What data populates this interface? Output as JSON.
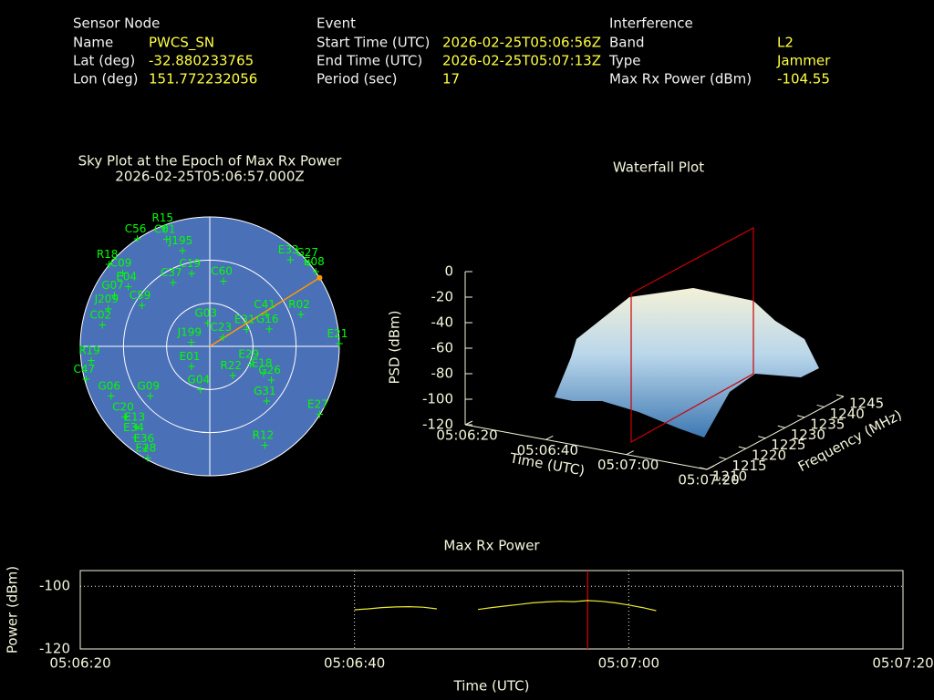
{
  "header": {
    "sensor": {
      "title": "Sensor Node",
      "rows": [
        [
          "Name",
          "PWCS_SN"
        ],
        [
          "Lat (deg)",
          "-32.880233765"
        ],
        [
          "Lon (deg)",
          "151.772232056"
        ]
      ]
    },
    "event": {
      "title": "Event",
      "rows": [
        [
          "Start Time (UTC)",
          "2026-02-25T05:06:56Z"
        ],
        [
          "End Time (UTC)",
          "2026-02-25T05:07:13Z"
        ],
        [
          "Period (sec)",
          "17"
        ]
      ]
    },
    "interference": {
      "title": "Interference",
      "rows": [
        [
          "Band",
          "L2"
        ],
        [
          "Type",
          "Jammer"
        ],
        [
          "Max Rx Power (dBm)",
          "-104.55"
        ]
      ]
    }
  },
  "chart_data": [
    {
      "type": "polar",
      "title": "Sky Plot at the Epoch of Max Rx Power",
      "subtitle": "2026-02-25T05:06:57.000Z",
      "rlim": [
        90,
        0
      ],
      "rticks": [
        90,
        60,
        30,
        0
      ],
      "color": "#00ff00",
      "disk_color": "#4a70b8",
      "jammer_azimuth": 58,
      "jammer_color": "#ff9900",
      "satellites": [
        {
          "name": "R15",
          "azimuth": 339,
          "elevation": 2
        },
        {
          "name": "C01",
          "azimuth": 338,
          "elevation": 10
        },
        {
          "name": "C56",
          "azimuth": 326,
          "elevation": 0
        },
        {
          "name": "J195",
          "azimuth": 344,
          "elevation": 21
        },
        {
          "name": "E33",
          "azimuth": 43,
          "elevation": 8
        },
        {
          "name": "G27",
          "azimuth": 50,
          "elevation": 0
        },
        {
          "name": "E08",
          "azimuth": 55,
          "elevation": 0
        },
        {
          "name": "R18",
          "azimuth": 309,
          "elevation": 0
        },
        {
          "name": "C09",
          "azimuth": 310,
          "elevation": 11
        },
        {
          "name": "C37",
          "azimuth": 330,
          "elevation": 39
        },
        {
          "name": "C60",
          "azimuth": 12,
          "elevation": 44
        },
        {
          "name": "E04",
          "azimuth": 306,
          "elevation": 20
        },
        {
          "name": "C19",
          "azimuth": 346,
          "elevation": 38
        },
        {
          "name": "G07",
          "azimuth": 298,
          "elevation": 15
        },
        {
          "name": "J209",
          "azimuth": 290,
          "elevation": 15
        },
        {
          "name": "C02",
          "azimuth": 281,
          "elevation": 14
        },
        {
          "name": "C59",
          "azimuth": 301,
          "elevation": 35
        },
        {
          "name": "G03",
          "azimuth": 355,
          "elevation": 74
        },
        {
          "name": "C41",
          "azimuth": 61,
          "elevation": 45
        },
        {
          "name": "R02",
          "azimuth": 71,
          "elevation": 23
        },
        {
          "name": "E31",
          "azimuth": 66,
          "elevation": 62
        },
        {
          "name": "G16",
          "azimuth": 74,
          "elevation": 47
        },
        {
          "name": "C23",
          "azimuth": 56,
          "elevation": 79
        },
        {
          "name": "J199",
          "azimuth": 281,
          "elevation": 77
        },
        {
          "name": "E21",
          "azimuth": 89,
          "elevation": 0
        },
        {
          "name": "R19",
          "azimuth": 263,
          "elevation": 7
        },
        {
          "name": "C47",
          "azimuth": 255,
          "elevation": 1
        },
        {
          "name": "G06",
          "azimuth": 243,
          "elevation": 13
        },
        {
          "name": "E29",
          "azimuth": 114,
          "elevation": 59
        },
        {
          "name": "E18",
          "azimuth": 117,
          "elevation": 48
        },
        {
          "name": "G26",
          "azimuth": 119,
          "elevation": 41
        },
        {
          "name": "G31",
          "azimuth": 134,
          "elevation": 35
        },
        {
          "name": "E27",
          "azimuth": 122,
          "elevation": 0
        },
        {
          "name": "G09",
          "azimuth": 230,
          "elevation": 36
        },
        {
          "name": "C20",
          "azimuth": 230,
          "elevation": 13
        },
        {
          "name": "E13",
          "azimuth": 222,
          "elevation": 14
        },
        {
          "name": "E34",
          "azimuth": 219,
          "elevation": 8
        },
        {
          "name": "E36",
          "azimuth": 212,
          "elevation": 6
        },
        {
          "name": "E28",
          "azimuth": 209,
          "elevation": 1
        },
        {
          "name": "R12",
          "azimuth": 151,
          "elevation": 11
        },
        {
          "name": "G04",
          "azimuth": 192,
          "elevation": 59
        },
        {
          "name": "R22",
          "azimuth": 142,
          "elevation": 64
        },
        {
          "name": "E01",
          "azimuth": 222,
          "elevation": 71
        }
      ]
    },
    {
      "type": "waterfall3d",
      "title": "Waterfall Plot",
      "xlabel": "Time (UTC)",
      "ylabel": "Frequency (MHz)",
      "zlabel": "PSD (dBm)",
      "xticks": [
        "05:06:20",
        "05:06:40",
        "05:07:00",
        "05:07:20"
      ],
      "ylim": [
        1210,
        1245
      ],
      "yticks": [
        1210,
        1215,
        1220,
        1225,
        1230,
        1235,
        1240,
        1245
      ],
      "zlim": [
        -120,
        0
      ],
      "zticks": [
        0,
        -20,
        -40,
        -60,
        -80,
        -100,
        -120
      ]
    },
    {
      "type": "line",
      "title": "Max Rx Power",
      "xlabel": "Time (UTC)",
      "ylabel": "Power (dBm)",
      "xlim": [
        "05:06:20",
        "05:07:20"
      ],
      "xticks": [
        "05:06:20",
        "05:06:40",
        "05:07:00",
        "05:07:20"
      ],
      "ylim": [
        -120,
        -95
      ],
      "yticks": [
        -100,
        -120
      ],
      "grid": true,
      "color": "#e8e830",
      "epoch_line": "05:06:57",
      "epoch_color": "#dd0000",
      "x": [
        "05:06:40",
        "05:06:41",
        "05:06:42",
        "05:06:43",
        "05:06:44",
        "05:06:45",
        "05:06:46",
        "05:06:47",
        "05:06:48",
        "05:06:49",
        "05:06:50",
        "05:06:51",
        "05:06:52",
        "05:06:53",
        "05:06:54",
        "05:06:55",
        "05:06:56",
        "05:06:57",
        "05:06:58",
        "05:06:59",
        "05:07:00",
        "05:07:01",
        "05:07:02"
      ],
      "values": [
        -107.5,
        -107.2,
        -106.8,
        -106.6,
        -106.5,
        -106.7,
        -107.2,
        null,
        null,
        -107.4,
        -106.8,
        -106.3,
        -105.8,
        -105.3,
        -105.0,
        -104.8,
        -104.9,
        -104.55,
        -104.8,
        -105.3,
        -106.0,
        -106.8,
        -107.8
      ]
    }
  ]
}
